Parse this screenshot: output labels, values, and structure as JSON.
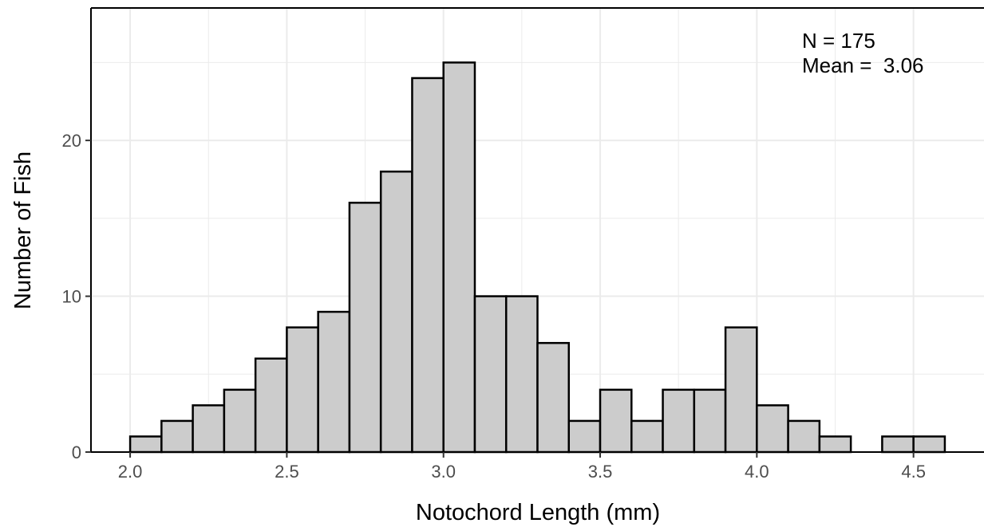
{
  "chart_data": {
    "type": "bar",
    "subtype": "histogram",
    "xlabel": "Notochord Length (mm)",
    "ylabel": "Number of Fish",
    "xlim": [
      1.875,
      4.725
    ],
    "ylim": [
      0,
      28.5
    ],
    "x_ticks": [
      2.0,
      2.5,
      3.0,
      3.5,
      4.0,
      4.5
    ],
    "x_tick_labels": [
      "2.0",
      "2.5",
      "3.0",
      "3.5",
      "4.0",
      "4.5"
    ],
    "y_ticks": [
      0,
      10,
      20
    ],
    "y_tick_labels": [
      "0",
      "10",
      "20"
    ],
    "bin_width": 0.1,
    "bins": [
      {
        "start": 2.0,
        "end": 2.1,
        "count": 1
      },
      {
        "start": 2.1,
        "end": 2.2,
        "count": 2
      },
      {
        "start": 2.2,
        "end": 2.3,
        "count": 3
      },
      {
        "start": 2.3,
        "end": 2.4,
        "count": 4
      },
      {
        "start": 2.4,
        "end": 2.5,
        "count": 6
      },
      {
        "start": 2.5,
        "end": 2.6,
        "count": 8
      },
      {
        "start": 2.6,
        "end": 2.7,
        "count": 9
      },
      {
        "start": 2.7,
        "end": 2.8,
        "count": 16
      },
      {
        "start": 2.8,
        "end": 2.9,
        "count": 18
      },
      {
        "start": 2.9,
        "end": 3.0,
        "count": 24
      },
      {
        "start": 3.0,
        "end": 3.1,
        "count": 25
      },
      {
        "start": 3.1,
        "end": 3.2,
        "count": 10
      },
      {
        "start": 3.2,
        "end": 3.3,
        "count": 10
      },
      {
        "start": 3.3,
        "end": 3.4,
        "count": 7
      },
      {
        "start": 3.4,
        "end": 3.5,
        "count": 2
      },
      {
        "start": 3.5,
        "end": 3.6,
        "count": 4
      },
      {
        "start": 3.6,
        "end": 3.7,
        "count": 2
      },
      {
        "start": 3.7,
        "end": 3.8,
        "count": 4
      },
      {
        "start": 3.8,
        "end": 3.9,
        "count": 4
      },
      {
        "start": 3.9,
        "end": 4.0,
        "count": 8
      },
      {
        "start": 4.0,
        "end": 4.1,
        "count": 3
      },
      {
        "start": 4.1,
        "end": 4.2,
        "count": 2
      },
      {
        "start": 4.2,
        "end": 4.3,
        "count": 1
      },
      {
        "start": 4.3,
        "end": 4.4,
        "count": 0
      },
      {
        "start": 4.4,
        "end": 4.5,
        "count": 1
      },
      {
        "start": 4.5,
        "end": 4.6,
        "count": 1
      }
    ],
    "annotations": [
      "N = 175",
      "Mean =  3.06"
    ],
    "grid": true,
    "colors": {
      "bar_fill": "#cccccc",
      "bar_stroke": "#000000",
      "grid": "#ebebeb",
      "axis": "#000000"
    }
  }
}
